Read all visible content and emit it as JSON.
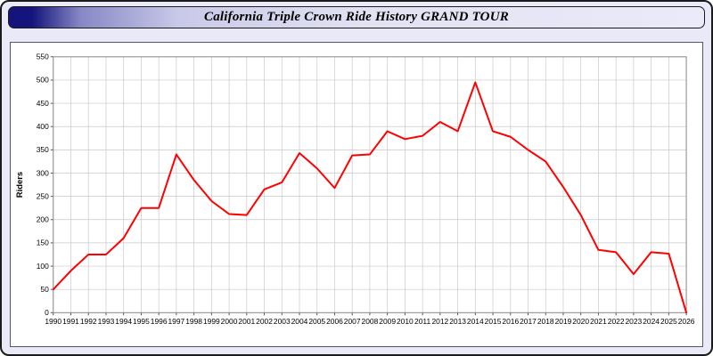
{
  "title": "California Triple Crown Ride History GRAND TOUR",
  "chart_data": {
    "type": "line",
    "title": "California Triple Crown Ride History GRAND TOUR",
    "xlabel": "",
    "ylabel": "Riders",
    "ylim": [
      0,
      550
    ],
    "ytick_step": 50,
    "grid": true,
    "legend_position": "none",
    "line_color": "#ff0000",
    "grid_color": "#c9c9c9",
    "years": [
      1990,
      1991,
      1992,
      1993,
      1994,
      1995,
      1996,
      1997,
      1998,
      1999,
      2000,
      2001,
      2002,
      2003,
      2004,
      2005,
      2006,
      2007,
      2008,
      2009,
      2010,
      2011,
      2012,
      2013,
      2014,
      2015,
      2016,
      2017,
      2018,
      2019,
      2020,
      2021,
      2022,
      2023,
      2024,
      2025,
      2026
    ],
    "values": [
      50,
      90,
      125,
      125,
      160,
      225,
      225,
      340,
      285,
      240,
      212,
      210,
      265,
      280,
      343,
      310,
      268,
      338,
      340,
      390,
      373,
      380,
      410,
      390,
      495,
      390,
      378,
      350,
      325,
      270,
      210,
      135,
      130,
      83,
      130,
      127,
      0
    ]
  }
}
